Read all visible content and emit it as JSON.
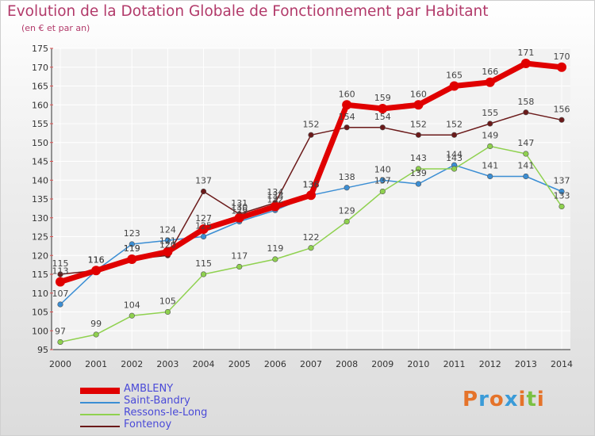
{
  "header": {
    "title": "Evolution de la Dotation Globale de Fonctionnement par Habitant",
    "subtitle": "(en € et par an)"
  },
  "logo": {
    "text": "Proxiti",
    "colors": [
      "#e5732a",
      "#3a9bd8",
      "#e5732a",
      "#3a9bd8",
      "#e5732a",
      "#7ac143",
      "#e5732a"
    ]
  },
  "chart_data": {
    "type": "line",
    "x": [
      "2000",
      "2001",
      "2002",
      "2003",
      "2004",
      "2005",
      "2006",
      "2007",
      "2008",
      "2009",
      "2010",
      "2011",
      "2012",
      "2013",
      "2014"
    ],
    "ylim": [
      95,
      175
    ],
    "yticks": [
      95,
      100,
      105,
      110,
      115,
      120,
      125,
      130,
      135,
      140,
      145,
      150,
      155,
      160,
      165,
      170,
      175
    ],
    "grid": true,
    "legend_position": "bottom-left",
    "series": [
      {
        "name": "AMBLENY",
        "color": "#e00000",
        "values": [
          113,
          116,
          119,
          121,
          127,
          130,
          133,
          136,
          160,
          159,
          160,
          165,
          166,
          171,
          170
        ]
      },
      {
        "name": "Saint-Bandry",
        "color": "#3b8ed4",
        "values": [
          107,
          116,
          123,
          124,
          125,
          129,
          132,
          136,
          138,
          140,
          139,
          144,
          141,
          141,
          137
        ]
      },
      {
        "name": "Ressons-le-Long",
        "color": "#8fd14f",
        "values": [
          97,
          99,
          104,
          105,
          115,
          117,
          119,
          122,
          129,
          137,
          143,
          143,
          149,
          147,
          133
        ]
      },
      {
        "name": "Fontenoy",
        "color": "#6b1a1a",
        "values": [
          115,
          116,
          119,
          120,
          137,
          131,
          134,
          152,
          154,
          154,
          152,
          152,
          155,
          158,
          156
        ]
      }
    ]
  }
}
